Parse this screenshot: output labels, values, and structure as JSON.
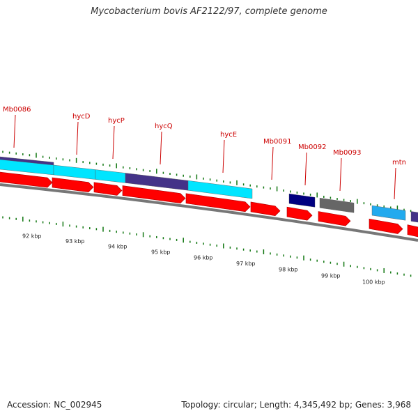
{
  "title": "Mycobacterium bovis AF2122/97, complete genome",
  "footer": {
    "accession": "Accession: NC_002945",
    "stats": "Topology: circular; Length: 4,345,492 bp; Genes: 3,968"
  },
  "colors": {
    "cds_forward": "#ff0000",
    "feature_cyan": "#00e5ff",
    "feature_blue": "#22aaee",
    "feature_purple": "#443388",
    "feature_navy": "#000080",
    "feature_gray": "#666666",
    "backbone": "#777777",
    "tick": "#117711",
    "gene_label": "#cc0000"
  },
  "genes": [
    {
      "name": "Mb0086"
    },
    {
      "name": "hycD"
    },
    {
      "name": "hycP"
    },
    {
      "name": "hycQ"
    },
    {
      "name": "hycE"
    },
    {
      "name": "Mb0091"
    },
    {
      "name": "Mb0092"
    },
    {
      "name": "Mb0093"
    },
    {
      "name": "mtn"
    }
  ],
  "kbp_labels": [
    "92 kbp",
    "93 kbp",
    "94 kbp",
    "95 kbp",
    "96 kbp",
    "97 kbp",
    "98 kbp",
    "99 kbp",
    "100 kbp"
  ]
}
